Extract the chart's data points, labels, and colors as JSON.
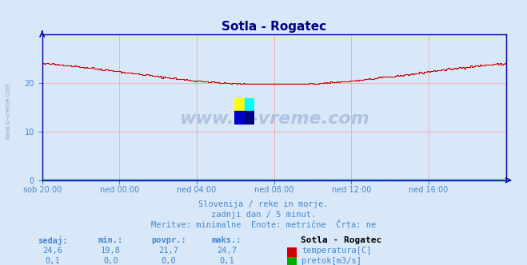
{
  "title": "Sotla - Rogatec",
  "bg_color": "#d8e8f8",
  "plot_bg_color": "#d8e8f8",
  "temp_color": "#cc0000",
  "flow_color": "#00aa00",
  "axis_color": "#0000aa",
  "grid_color": "#ff9999",
  "text_color": "#4488cc",
  "xlabel_color": "#4488cc",
  "title_color": "#000080",
  "xlim": [
    0,
    288
  ],
  "ylim": [
    0,
    30
  ],
  "yticks": [
    0,
    10,
    20
  ],
  "xtick_labels": [
    "sob 20:00",
    "ned 00:00",
    "ned 04:00",
    "ned 08:00",
    "ned 12:00",
    "ned 16:00"
  ],
  "xtick_positions": [
    0,
    48,
    96,
    144,
    192,
    240
  ],
  "watermark": "www.si-vreme.com",
  "subtitle1": "Slovenija / reke in morje.",
  "subtitle2": "zadnji dan / 5 minut.",
  "subtitle3": "Meritve: minimalne  Enote: metrične  Črta: ne",
  "stats_headers": [
    "sedaj:",
    "min.:",
    "povpr.:",
    "maks.:"
  ],
  "stats_temp": [
    "24,6",
    "19,8",
    "21,7",
    "24,7"
  ],
  "stats_flow": [
    "0,1",
    "0,0",
    "0,0",
    "0,1"
  ],
  "legend_title": "Sotla - Rogatec",
  "legend_temp_label": "temperatura[C]",
  "legend_flow_label": "pretok[m3/s]"
}
